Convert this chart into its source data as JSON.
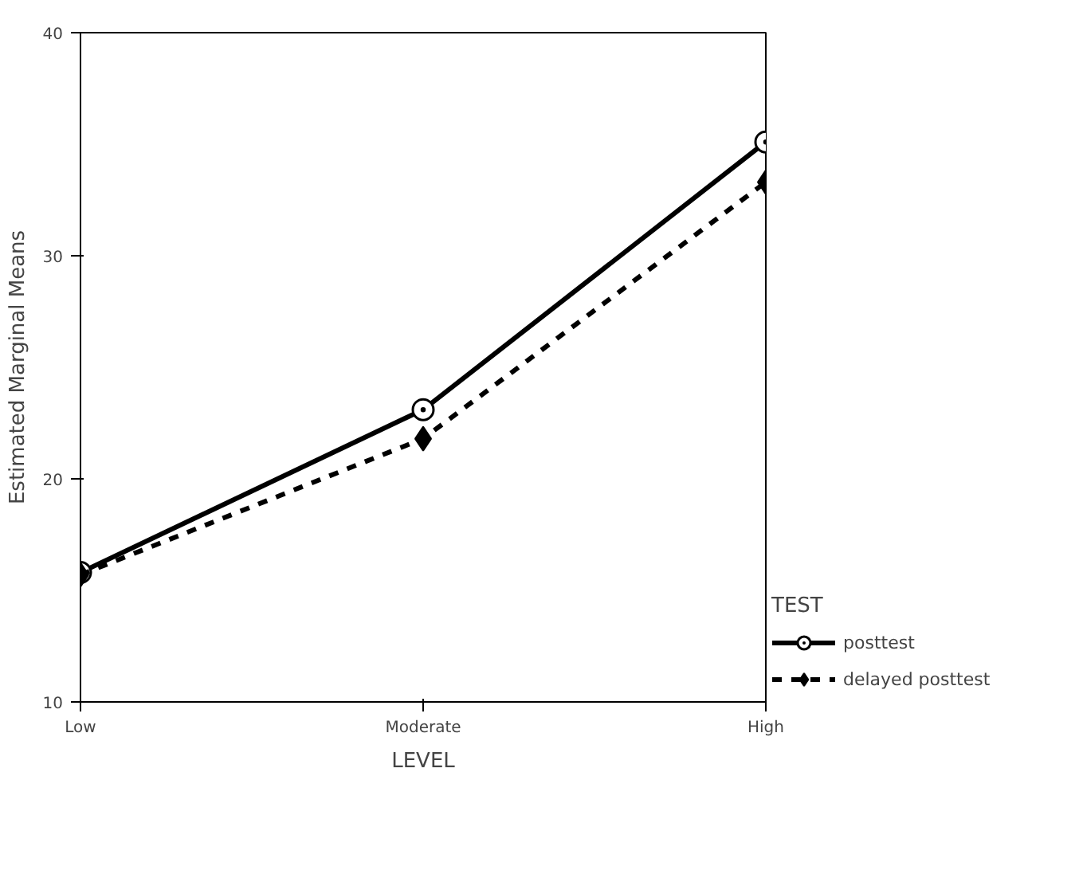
{
  "chart_data": {
    "type": "line",
    "xlabel": "LEVEL",
    "ylabel": "Estimated Marginal Means",
    "legend_title": "TEST",
    "categories": [
      "Low",
      "Moderate",
      "High"
    ],
    "series": [
      {
        "name": "posttest",
        "color": "#000000",
        "values": [
          15.8,
          23.1,
          35.1
        ],
        "marker": "circle",
        "line_style": "solid"
      },
      {
        "name": "delayed posttest",
        "color": "#000000",
        "values": [
          15.7,
          21.8,
          33.3
        ],
        "marker": "diamond",
        "line_style": "dashed"
      }
    ],
    "ylim": [
      10,
      40
    ],
    "yticks": [
      10,
      20,
      30,
      40
    ],
    "legend": "right"
  }
}
